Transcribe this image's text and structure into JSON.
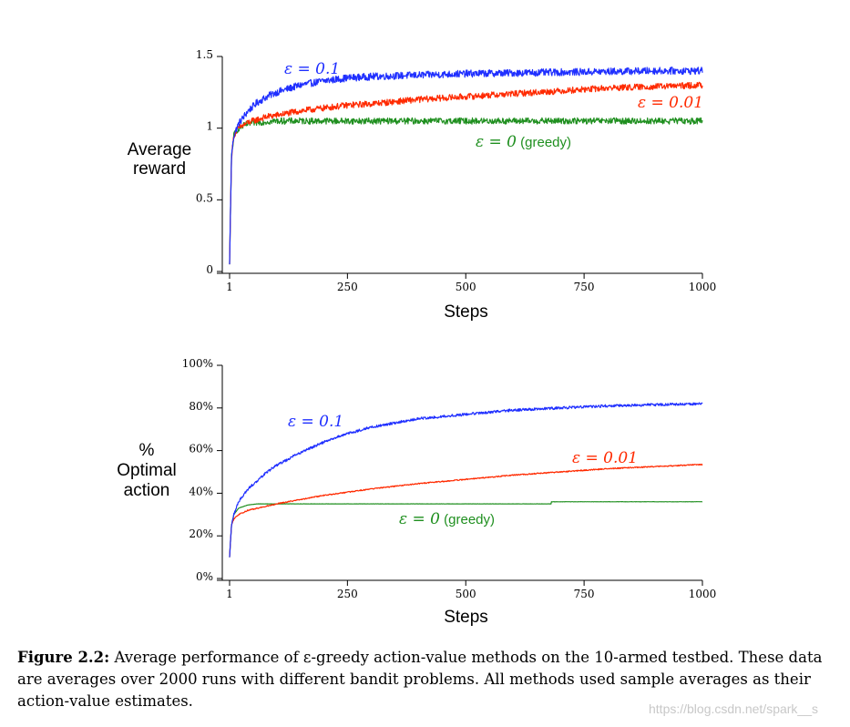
{
  "chart_data": [
    {
      "type": "line",
      "ylabel_lines": [
        "Average",
        "reward"
      ],
      "xlabel": "Steps",
      "xlim": [
        1,
        1000
      ],
      "ylim": [
        0,
        1.5
      ],
      "xticks": [
        1,
        250,
        500,
        750,
        1000
      ],
      "xtick_labels": [
        "1",
        "250",
        "500",
        "750",
        "1000"
      ],
      "yticks": [
        0,
        0.5,
        1,
        1.5
      ],
      "ytick_labels": [
        "0",
        "0.5",
        "1",
        "1.5"
      ],
      "series": [
        {
          "name": "ε = 0.1",
          "color": "#1f2fff",
          "noise": 0.025,
          "x": [
            1,
            5,
            10,
            20,
            40,
            60,
            80,
            100,
            150,
            200,
            250,
            300,
            400,
            500,
            600,
            700,
            800,
            900,
            1000
          ],
          "y": [
            0.05,
            0.8,
            0.95,
            1.03,
            1.12,
            1.18,
            1.22,
            1.25,
            1.3,
            1.33,
            1.35,
            1.36,
            1.37,
            1.38,
            1.385,
            1.39,
            1.395,
            1.4,
            1.4
          ]
        },
        {
          "name": "ε = 0.01",
          "color": "#ff2a00",
          "noise": 0.022,
          "x": [
            1,
            5,
            10,
            20,
            40,
            60,
            80,
            100,
            150,
            200,
            250,
            300,
            400,
            500,
            600,
            700,
            800,
            900,
            1000
          ],
          "y": [
            0.05,
            0.8,
            0.95,
            1.0,
            1.04,
            1.06,
            1.08,
            1.09,
            1.12,
            1.14,
            1.16,
            1.17,
            1.2,
            1.22,
            1.24,
            1.26,
            1.28,
            1.29,
            1.3
          ]
        },
        {
          "name": "ε = 0 (greedy)",
          "color": "#1f8f1f",
          "noise": 0.022,
          "x": [
            1,
            5,
            10,
            20,
            40,
            60,
            100,
            200,
            400,
            600,
            800,
            1000
          ],
          "y": [
            0.05,
            0.8,
            0.95,
            1.0,
            1.03,
            1.04,
            1.05,
            1.05,
            1.05,
            1.05,
            1.05,
            1.05
          ]
        }
      ],
      "annotations": [
        {
          "series": 0,
          "text": "ε = 0.1",
          "sub": ""
        },
        {
          "series": 1,
          "text": "ε = 0.01",
          "sub": ""
        },
        {
          "series": 2,
          "text": "ε = 0",
          "sub": "(greedy)"
        }
      ]
    },
    {
      "type": "line",
      "ylabel_lines": [
        "%",
        "Optimal",
        "action"
      ],
      "xlabel": "Steps",
      "xlim": [
        1,
        1000
      ],
      "ylim": [
        0,
        100
      ],
      "xticks": [
        1,
        250,
        500,
        750,
        1000
      ],
      "xtick_labels": [
        "1",
        "250",
        "500",
        "750",
        "1000"
      ],
      "yticks": [
        0,
        20,
        40,
        60,
        80,
        100
      ],
      "ytick_labels": [
        "0%",
        "20%",
        "40%",
        "60%",
        "80%",
        "100%"
      ],
      "series": [
        {
          "name": "ε = 0.1",
          "color": "#1f2fff",
          "noise": 0.6,
          "x": [
            1,
            5,
            10,
            20,
            40,
            60,
            80,
            100,
            150,
            200,
            250,
            300,
            400,
            500,
            600,
            700,
            800,
            900,
            1000
          ],
          "y": [
            10,
            25,
            30,
            36,
            42,
            46,
            50,
            53,
            59,
            64,
            68,
            71,
            75,
            77,
            79,
            80,
            81,
            81.5,
            82
          ]
        },
        {
          "name": "ε = 0.01",
          "color": "#ff2a00",
          "noise": 0.25,
          "x": [
            1,
            5,
            10,
            20,
            40,
            60,
            80,
            100,
            150,
            200,
            250,
            300,
            400,
            500,
            600,
            700,
            800,
            900,
            1000
          ],
          "y": [
            10,
            25,
            28,
            30,
            32,
            33,
            34,
            35,
            37,
            39,
            40.5,
            42,
            44.5,
            46.5,
            48.5,
            50,
            51.5,
            52.5,
            53.5
          ]
        },
        {
          "name": "ε = 0 (greedy)",
          "color": "#1f8f1f",
          "noise": 0.05,
          "x": [
            1,
            5,
            10,
            20,
            40,
            60,
            100,
            200,
            400,
            680,
            681,
            1000
          ],
          "y": [
            10,
            25,
            30,
            33,
            34.5,
            35,
            35,
            35,
            35,
            35,
            36,
            36
          ]
        }
      ],
      "annotations": [
        {
          "series": 0,
          "text": "ε = 0.1",
          "sub": ""
        },
        {
          "series": 1,
          "text": "ε = 0.01",
          "sub": ""
        },
        {
          "series": 2,
          "text": "ε = 0",
          "sub": "(greedy)"
        }
      ]
    }
  ],
  "caption": {
    "label": "Figure 2.2:",
    "text": "Average performance of ε-greedy action-value methods on the 10-armed testbed. These data are averages over 2000 runs with different bandit problems. All methods used sample averages as their action-value estimates."
  },
  "watermark": "https://blog.csdn.net/spark__s"
}
